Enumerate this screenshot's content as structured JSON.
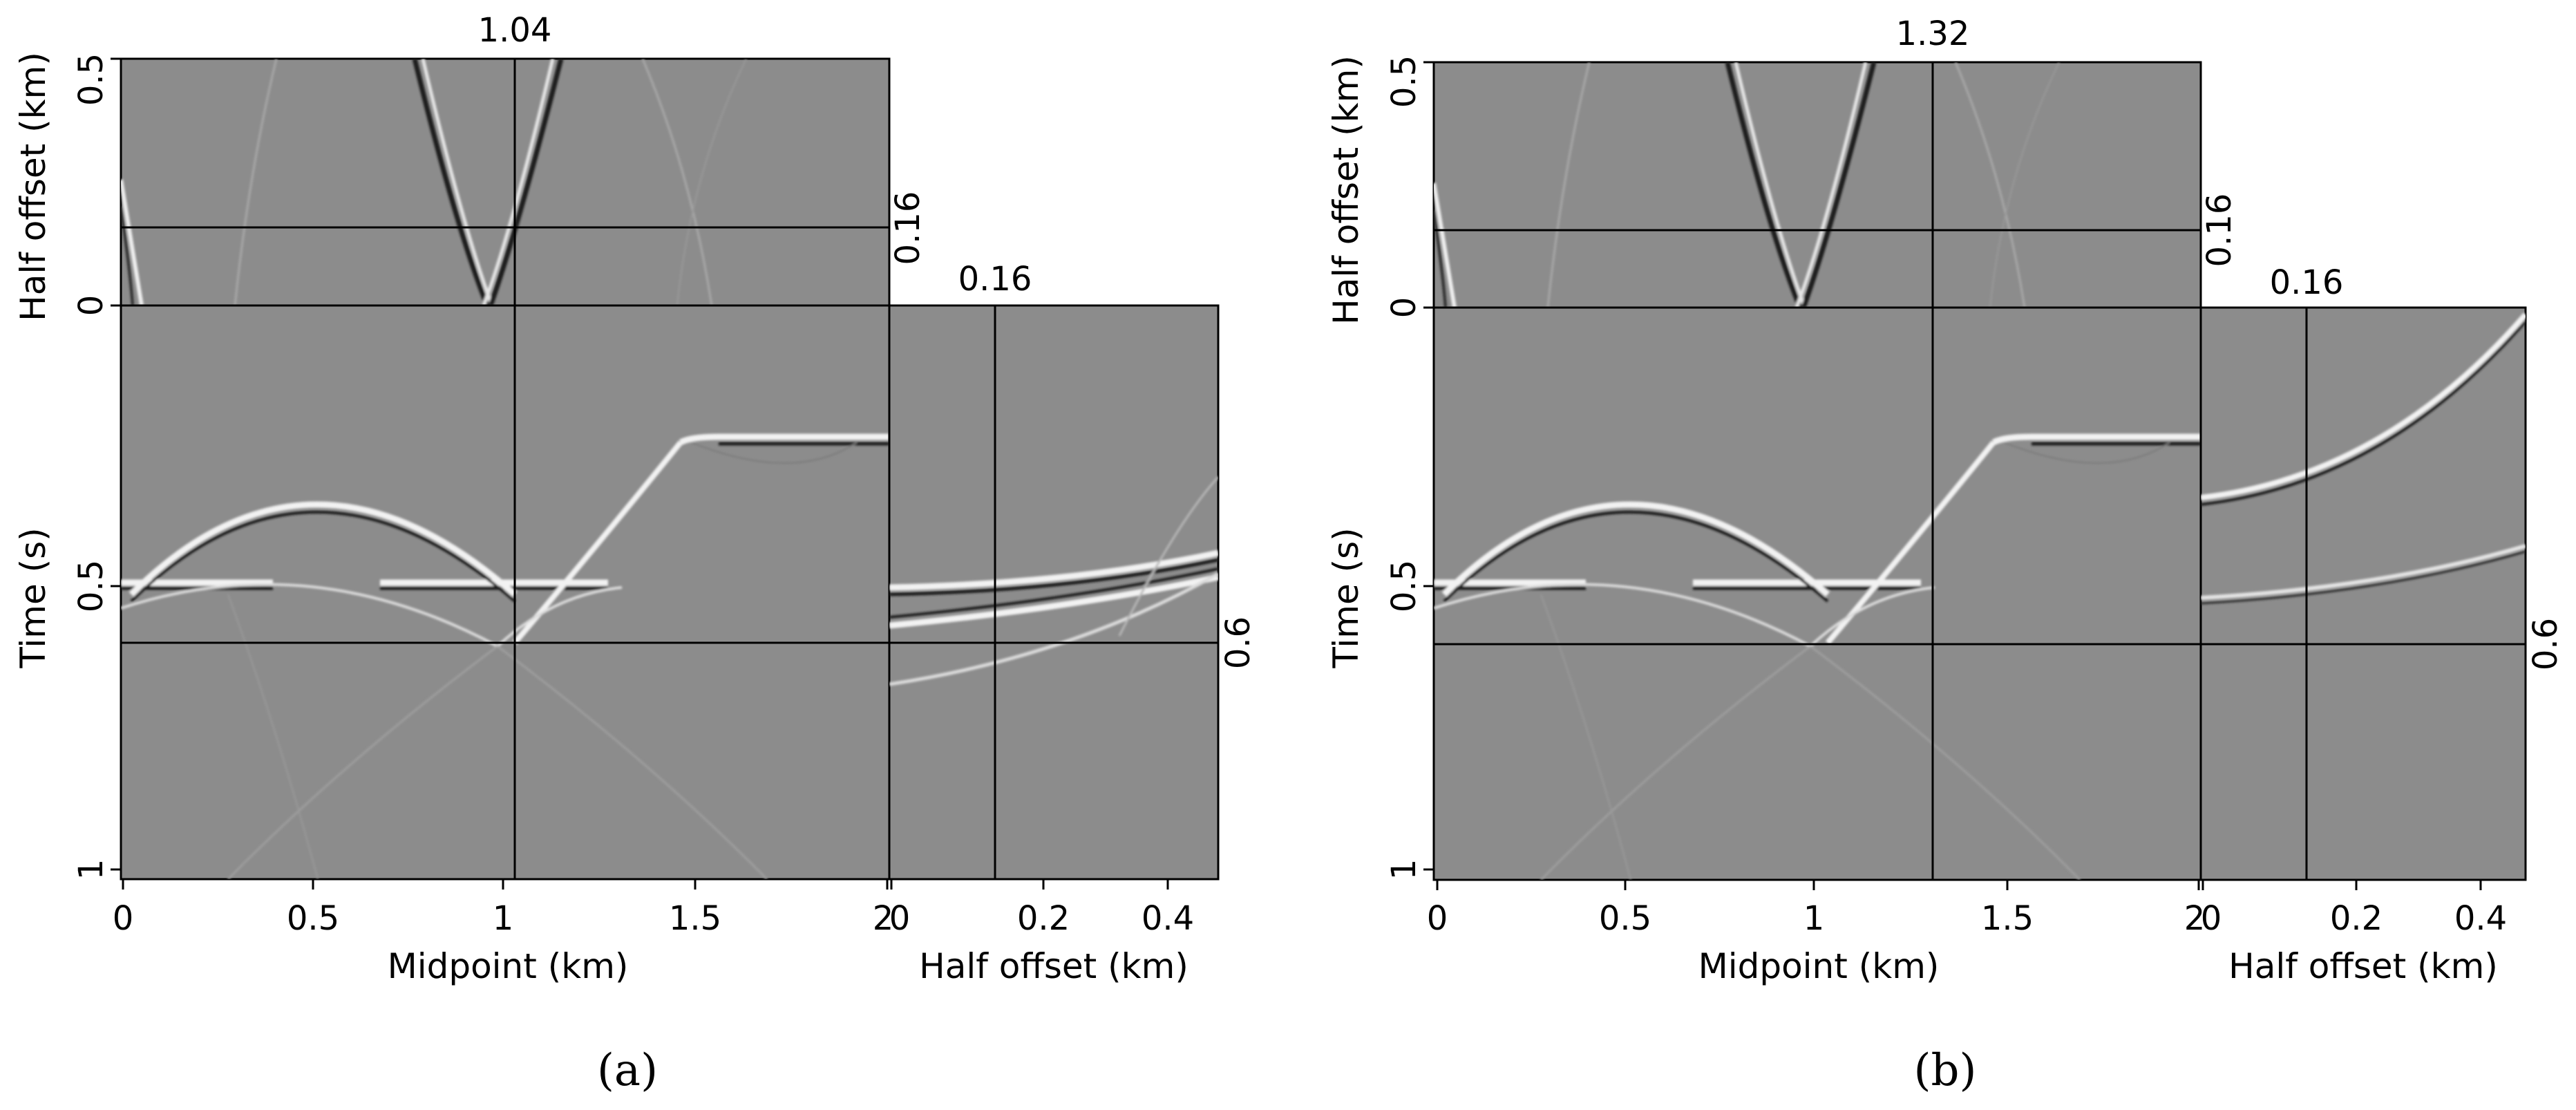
{
  "panels": [
    {
      "caption": "(a)",
      "cross_midpoint_label": "1.04",
      "cross_offset_label": "0.16",
      "cross_time_label": "0.6",
      "offset_panel_top_label": "0.16",
      "top_ylabel": "Half offset (km)",
      "top_yticks": [
        "0",
        "0.5"
      ],
      "main_ylabel": "Time (s)",
      "main_yticks": [
        "0.5",
        "1"
      ],
      "main_xlabel": "Midpoint (km)",
      "main_xticks": [
        "0",
        "0.5",
        "1",
        "1.5",
        "2"
      ],
      "side_xlabel": "Half offset (km)",
      "side_xticks": [
        "0",
        "0.2",
        "0.4"
      ]
    },
    {
      "caption": "(b)",
      "cross_midpoint_label": "1.32",
      "cross_offset_label": "0.16",
      "cross_time_label": "0.6",
      "offset_panel_top_label": "0.16",
      "top_ylabel": "Half offset (km)",
      "top_yticks": [
        "0",
        "0.5"
      ],
      "main_ylabel": "Time (s)",
      "main_yticks": [
        "0.5",
        "1"
      ],
      "main_xlabel": "Midpoint (km)",
      "main_xticks": [
        "0",
        "0.5",
        "1",
        "1.5",
        "2"
      ],
      "side_xlabel": "Half offset (km)",
      "side_xticks": [
        "0",
        "0.2",
        "0.4"
      ]
    }
  ],
  "colors": {
    "background_gray": "#8c8c8c",
    "frame": "#000000"
  }
}
